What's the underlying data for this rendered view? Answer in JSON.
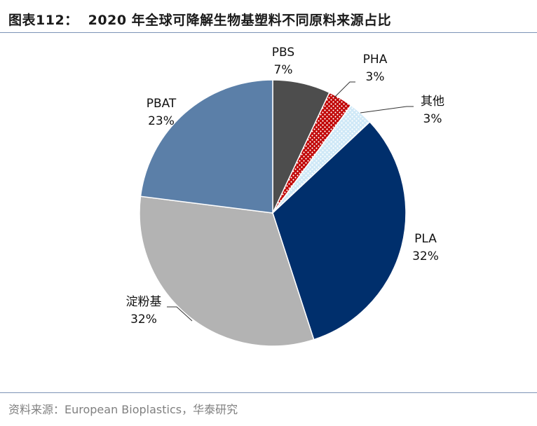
{
  "figure": {
    "number": "图表112：",
    "title": "2020 年全球可降解生物基塑料不同原料来源占比",
    "source": "资料来源：European Bioplastics，华泰研究"
  },
  "chart_data": {
    "type": "pie",
    "start_angle_deg": 0,
    "direction": "clockwise",
    "slices": [
      {
        "name": "PBS",
        "value": 7,
        "label": "7%",
        "color": "#4d4d4d",
        "pattern": "none"
      },
      {
        "name": "PHA",
        "value": 3,
        "label": "3%",
        "color": "#c00000",
        "pattern": "white-dots"
      },
      {
        "name": "其他",
        "value": 3,
        "label": "3%",
        "color": "#cfe8f7",
        "pattern": "white-dots"
      },
      {
        "name": "PLA",
        "value": 32,
        "label": "32%",
        "color": "#002f6c",
        "pattern": "none"
      },
      {
        "name": "淀粉基",
        "value": 32,
        "label": "32%",
        "color": "#b3b3b3",
        "pattern": "none"
      },
      {
        "name": "PBAT",
        "value": 23,
        "label": "23%",
        "color": "#5b7fa8",
        "pattern": "none"
      }
    ]
  }
}
